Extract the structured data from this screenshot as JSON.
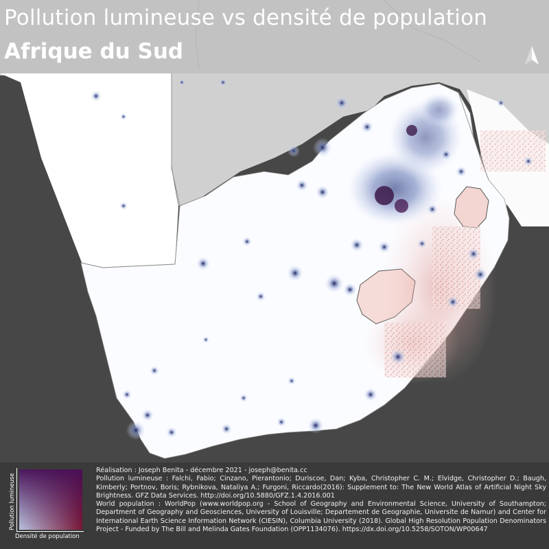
{
  "title": {
    "line1": "Pollution lumineuse vs densité de population",
    "line2": "Afrique du Sud"
  },
  "legend": {
    "x_label": "Densité de population",
    "y_label": "Pollution lumineuse",
    "colors": {
      "low_low": "#ffffff",
      "high_light": "#b9c3df",
      "high_population": "#d98c8c",
      "high_both": "#4a1045"
    }
  },
  "north_arrow": {
    "icon": "north-arrow-icon"
  },
  "credits": {
    "realisation": "Réalisation : Joseph Benita - décembre 2021 - joseph@benita.cc",
    "pollution": "Pollution lumineuse : Falchi, Fabio; Cinzano, Pierantonio; Duriscoe, Dan; Kyba, Christopher C. M.; Elvidge, Christopher D.; Baugh, Kimberly; Portnov, Boris; Rybnikova, Nataliya A.; Furgoni, Riccardo(2016): Supplement to: The New World Atlas of Artificial Night Sky Brightness. GFZ Data Services. http://doi.org/10.5880/GFZ.1.4.2016.001",
    "population": "World population : WorldPop (www.worldpop.org - School of Geography and Environmental Science, University of Southampton; Department of Geography and Geosciences, University of Louisville; Departement de Geographie, Universite de Namur) and Center for International Earth Science Information Network (CIESIN), Columbia University (2018). Global High Resolution Population Denominators Project - Funded by The Bill and Melinda Gates Foundation (OPP1134076). https://dx.doi.org/10.5258/SOTON/WP00647"
  },
  "map": {
    "country": "South Africa",
    "background_color": "#474747",
    "land_color": "#fbfcff",
    "light_glow_color": "#8d9fcf",
    "population_color": "#e2a7a0",
    "combined_color": "#3b1040"
  }
}
